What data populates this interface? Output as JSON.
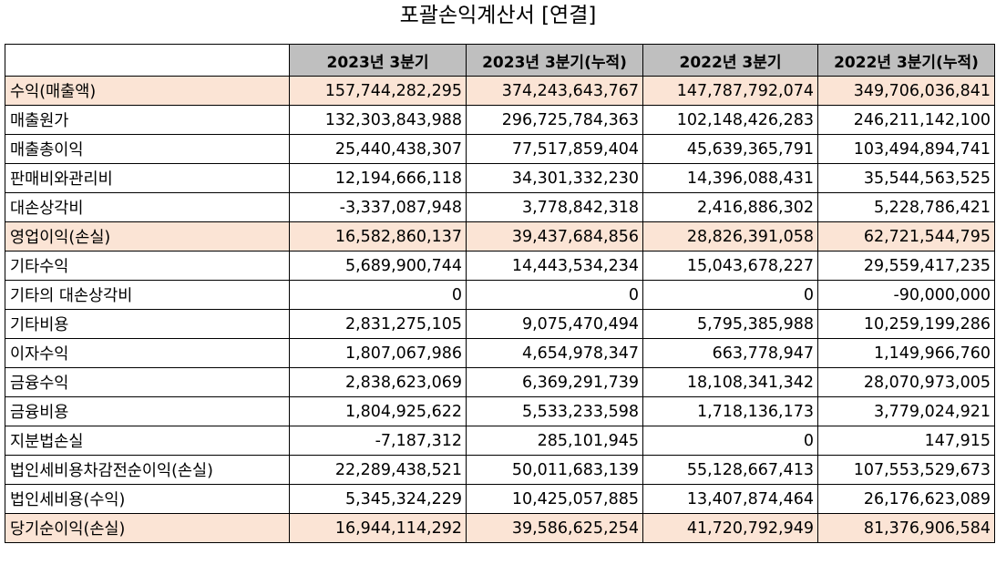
{
  "title": "포괄손익계산서 [연결]",
  "columns": [
    "",
    "2023년 3분기",
    "2023년 3분기(누적)",
    "2022년 3분기",
    "2022년 3분기(누적)"
  ],
  "highlight_color": "#fbe4d5",
  "header_color": "#bfbfbf",
  "rows": [
    {
      "label": "수익(매출액)",
      "values": [
        "157,744,282,295",
        "374,243,643,767",
        "147,787,792,074",
        "349,706,036,841"
      ],
      "highlight": true
    },
    {
      "label": "매출원가",
      "values": [
        "132,303,843,988",
        "296,725,784,363",
        "102,148,426,283",
        "246,211,142,100"
      ],
      "highlight": false
    },
    {
      "label": "매출총이익",
      "values": [
        "25,440,438,307",
        "77,517,859,404",
        "45,639,365,791",
        "103,494,894,741"
      ],
      "highlight": false
    },
    {
      "label": "판매비와관리비",
      "values": [
        "12,194,666,118",
        "34,301,332,230",
        "14,396,088,431",
        "35,544,563,525"
      ],
      "highlight": false
    },
    {
      "label": "대손상각비",
      "values": [
        "-3,337,087,948",
        "3,778,842,318",
        "2,416,886,302",
        "5,228,786,421"
      ],
      "highlight": false
    },
    {
      "label": "영업이익(손실)",
      "values": [
        "16,582,860,137",
        "39,437,684,856",
        "28,826,391,058",
        "62,721,544,795"
      ],
      "highlight": true
    },
    {
      "label": "기타수익",
      "values": [
        "5,689,900,744",
        "14,443,534,234",
        "15,043,678,227",
        "29,559,417,235"
      ],
      "highlight": false
    },
    {
      "label": "기타의 대손상각비",
      "values": [
        "0",
        "0",
        "0",
        "-90,000,000"
      ],
      "highlight": false
    },
    {
      "label": "기타비용",
      "values": [
        "2,831,275,105",
        "9,075,470,494",
        "5,795,385,988",
        "10,259,199,286"
      ],
      "highlight": false
    },
    {
      "label": "이자수익",
      "values": [
        "1,807,067,986",
        "4,654,978,347",
        "663,778,947",
        "1,149,966,760"
      ],
      "highlight": false
    },
    {
      "label": "금융수익",
      "values": [
        "2,838,623,069",
        "6,369,291,739",
        "18,108,341,342",
        "28,070,973,005"
      ],
      "highlight": false
    },
    {
      "label": "금융비용",
      "values": [
        "1,804,925,622",
        "5,533,233,598",
        "1,718,136,173",
        "3,779,024,921"
      ],
      "highlight": false
    },
    {
      "label": "지분법손실",
      "values": [
        "-7,187,312",
        "285,101,945",
        "0",
        "147,915"
      ],
      "highlight": false
    },
    {
      "label": "법인세비용차감전순이익(손실)",
      "values": [
        "22,289,438,521",
        "50,011,683,139",
        "55,128,667,413",
        "107,553,529,673"
      ],
      "highlight": false
    },
    {
      "label": "법인세비용(수익)",
      "values": [
        "5,345,324,229",
        "10,425,057,885",
        "13,407,874,464",
        "26,176,623,089"
      ],
      "highlight": false
    },
    {
      "label": "당기순이익(손실)",
      "values": [
        "16,944,114,292",
        "39,586,625,254",
        "41,720,792,949",
        "81,376,906,584"
      ],
      "highlight": true
    }
  ]
}
